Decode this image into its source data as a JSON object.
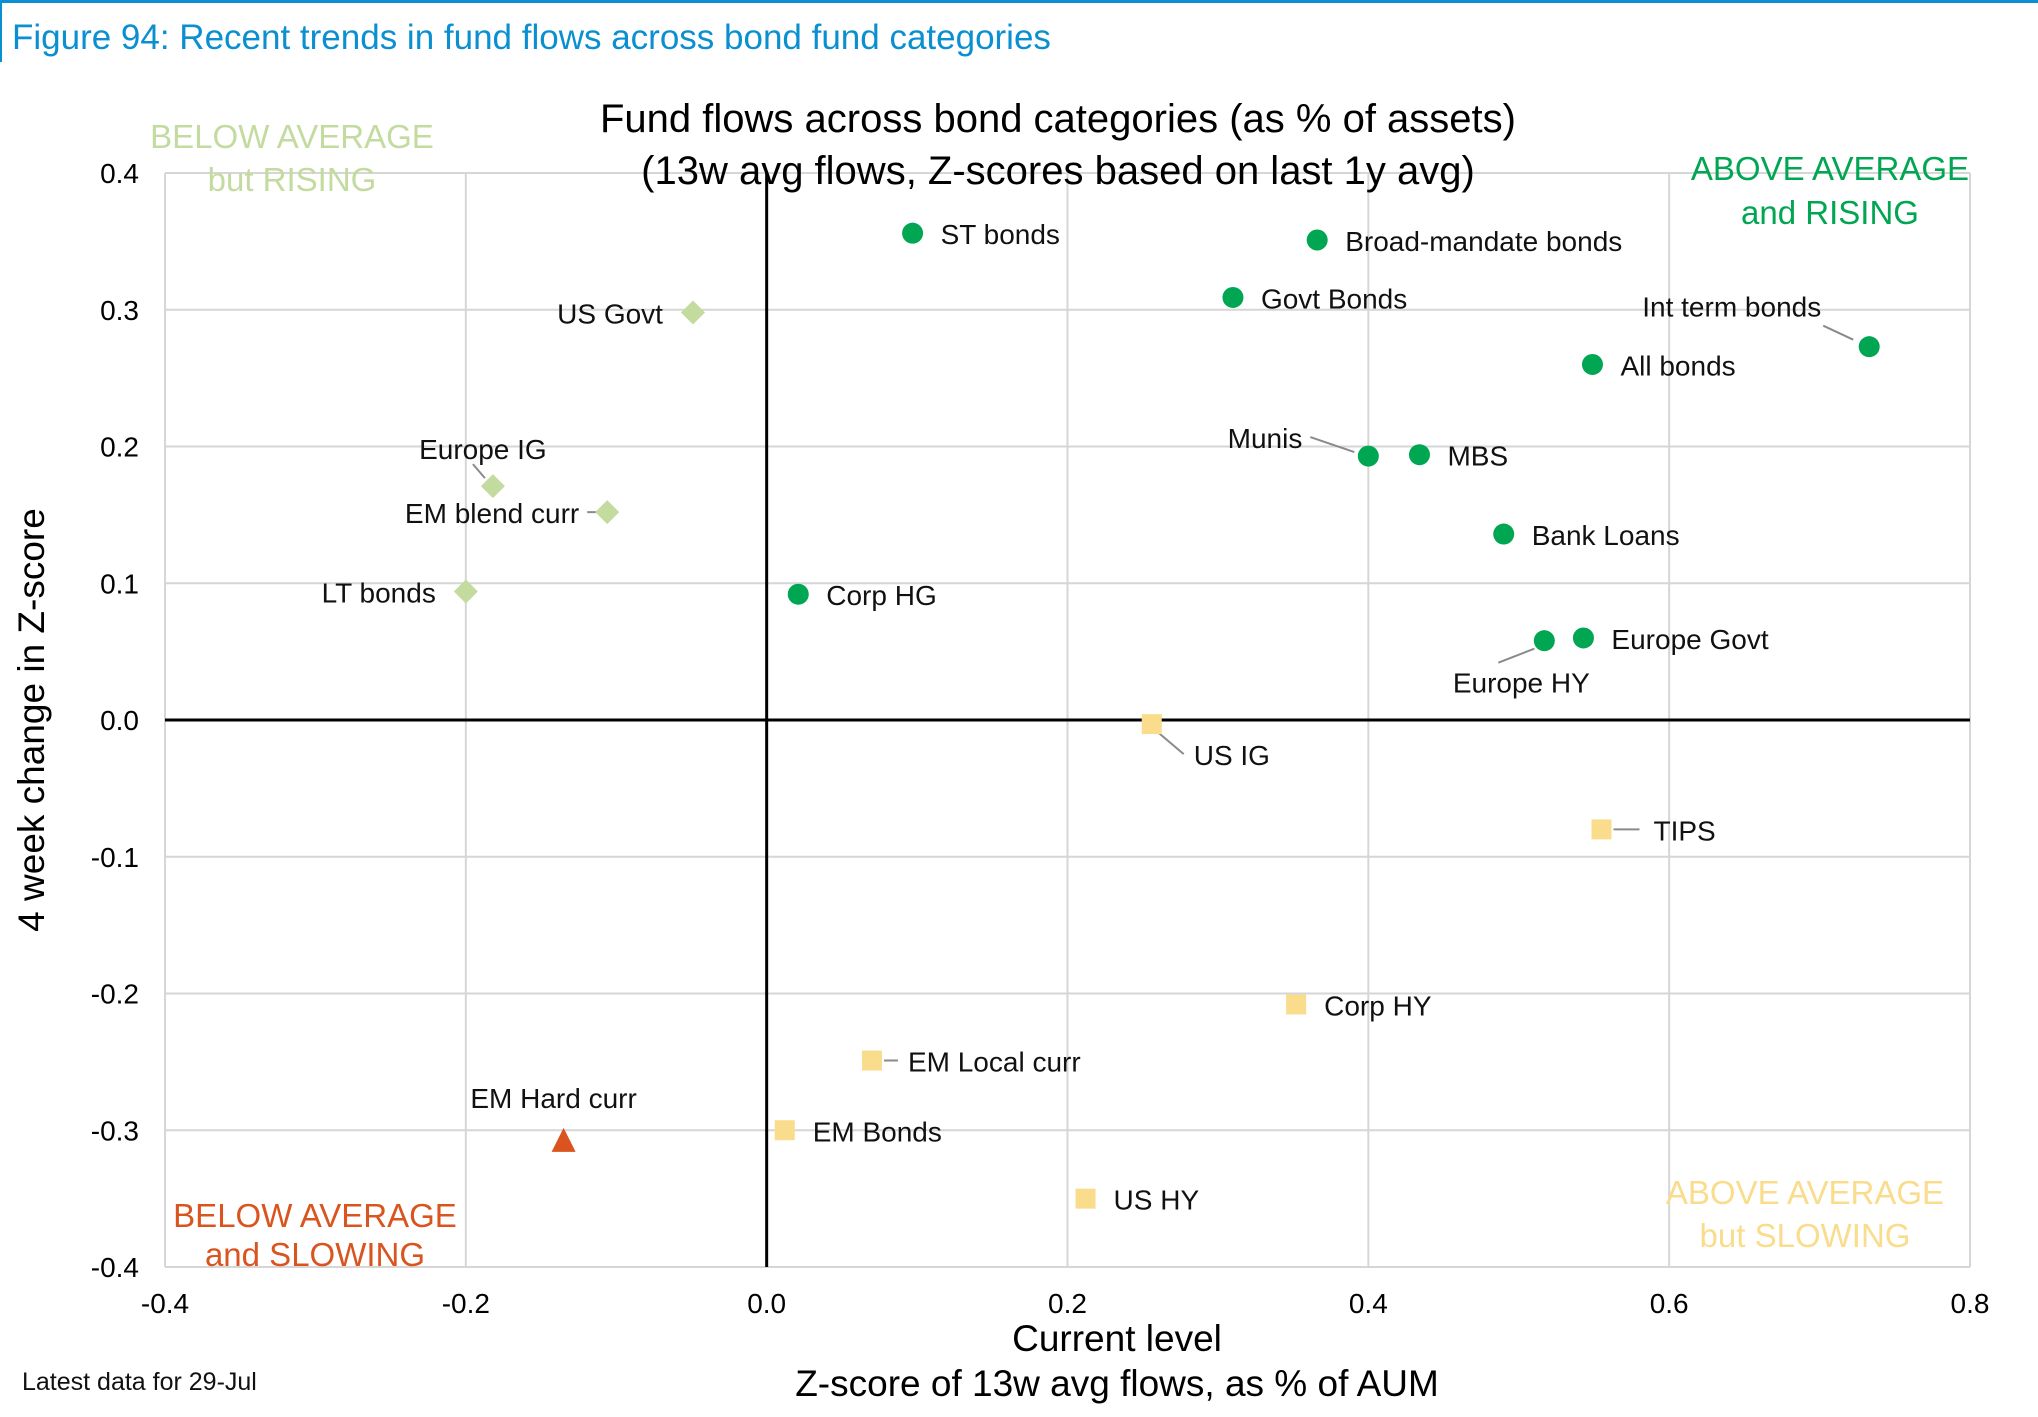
{
  "figure_title": "Figure 94: Recent trends in fund flows across bond fund categories",
  "footnote": "Latest data for 29-Jul",
  "colors": {
    "accent": "#0a8fd0",
    "above_rising": "#00a651",
    "below_rising": "#c4dba0",
    "below_slowing": "#d9541e",
    "above_slowing": "#f9dc8c",
    "grid": "#d6d6d6",
    "axis": "#000000"
  },
  "chart_data": {
    "type": "scatter",
    "title": "Fund flows across bond categories (as % of assets)",
    "subtitle": "(13w avg flows, Z-scores based on last 1y avg)",
    "xlabel": "Current level",
    "xlabel_sub": "Z-score of 13w avg flows, as % of AUM",
    "ylabel": "4 week change in Z-score",
    "xlim": [
      -0.4,
      0.8
    ],
    "ylim": [
      -0.4,
      0.4
    ],
    "x_ticks": [
      "-0.4",
      "-0.2",
      "0.0",
      "0.2",
      "0.4",
      "0.6",
      "0.8"
    ],
    "y_ticks": [
      "0.4",
      "0.3",
      "0.2",
      "0.1",
      "0.0",
      "-0.1",
      "-0.2",
      "-0.3",
      "-0.4"
    ],
    "grid": true,
    "quadrant_labels": [
      {
        "line1": "ABOVE AVERAGE",
        "line2": "and RISING",
        "position": "top-right"
      },
      {
        "line1": "BELOW AVERAGE",
        "line2": "but RISING",
        "position": "top-left"
      },
      {
        "line1": "BELOW AVERAGE",
        "line2": "and SLOWING",
        "position": "bottom-left"
      },
      {
        "line1": "ABOVE AVERAGE",
        "line2": "but SLOWING",
        "position": "bottom-right"
      }
    ],
    "series": [
      {
        "marker": "circle",
        "color": "#00a651",
        "points": [
          {
            "label": "ST bonds",
            "x": 0.097,
            "y": 0.356
          },
          {
            "label": "Broad-mandate bonds",
            "x": 0.366,
            "y": 0.351
          },
          {
            "label": "Govt Bonds",
            "x": 0.31,
            "y": 0.309
          },
          {
            "label": "Int term bonds",
            "x": 0.733,
            "y": 0.273
          },
          {
            "label": "All bonds",
            "x": 0.549,
            "y": 0.26
          },
          {
            "label": "Munis",
            "x": 0.4,
            "y": 0.193
          },
          {
            "label": "MBS",
            "x": 0.434,
            "y": 0.194
          },
          {
            "label": "Bank Loans",
            "x": 0.49,
            "y": 0.136
          },
          {
            "label": "Corp HG",
            "x": 0.021,
            "y": 0.092
          },
          {
            "label": "Europe Govt",
            "x": 0.543,
            "y": 0.06
          },
          {
            "label": "Europe HY",
            "x": 0.517,
            "y": 0.058
          }
        ]
      },
      {
        "marker": "diamond",
        "color": "#c4dba0",
        "points": [
          {
            "label": "US Govt",
            "x": -0.049,
            "y": 0.298
          },
          {
            "label": "Europe IG",
            "x": -0.182,
            "y": 0.171
          },
          {
            "label": "EM blend curr",
            "x": -0.106,
            "y": 0.152
          },
          {
            "label": "LT bonds",
            "x": -0.2,
            "y": 0.094
          }
        ]
      },
      {
        "marker": "square",
        "color": "#f9dc8c",
        "points": [
          {
            "label": "US IG",
            "x": 0.256,
            "y": -0.003
          },
          {
            "label": "TIPS",
            "x": 0.555,
            "y": -0.08
          },
          {
            "label": "Corp HY",
            "x": 0.352,
            "y": -0.208
          },
          {
            "label": "EM Local curr",
            "x": 0.07,
            "y": -0.249
          },
          {
            "label": "EM Bonds",
            "x": 0.012,
            "y": -0.3
          },
          {
            "label": "US HY",
            "x": 0.212,
            "y": -0.35
          }
        ]
      },
      {
        "marker": "triangle",
        "color": "#d9541e",
        "points": [
          {
            "label": "EM Hard curr",
            "x": -0.135,
            "y": -0.307
          }
        ]
      }
    ]
  }
}
